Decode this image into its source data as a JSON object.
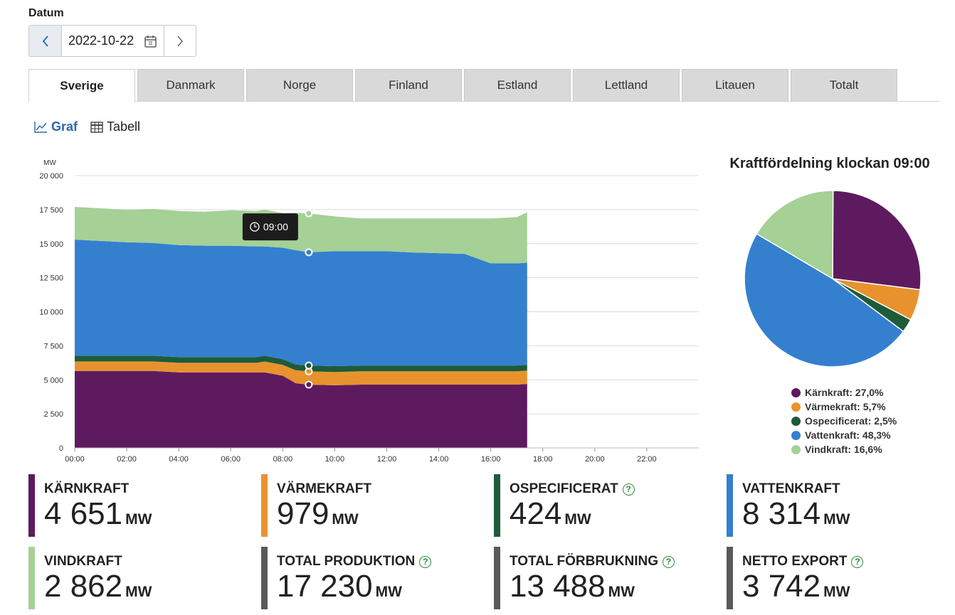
{
  "datum": {
    "label": "Datum",
    "value": "2022-10-22"
  },
  "tabs": [
    {
      "label": "Sverige",
      "active": true
    },
    {
      "label": "Danmark",
      "active": false
    },
    {
      "label": "Norge",
      "active": false
    },
    {
      "label": "Finland",
      "active": false
    },
    {
      "label": "Estland",
      "active": false
    },
    {
      "label": "Lettland",
      "active": false
    },
    {
      "label": "Litauen",
      "active": false
    },
    {
      "label": "Totalt",
      "active": false
    }
  ],
  "view_toggle": {
    "graph": "Graf",
    "table": "Tabell"
  },
  "tooltip": {
    "time": "09:00"
  },
  "chart_data": {
    "type": "area",
    "stacked": true,
    "ylabel": "MW",
    "ylim": [
      0,
      20000
    ],
    "yticks": [
      0,
      2500,
      5000,
      7500,
      10000,
      12500,
      15000,
      17500,
      20000
    ],
    "ytick_labels": [
      "0",
      "2 500",
      "5 000",
      "7 500",
      "10 000",
      "12 500",
      "15 000",
      "17 500",
      "20 000"
    ],
    "xlim": [
      0,
      24
    ],
    "xticks": [
      0,
      2,
      4,
      6,
      8,
      10,
      12,
      14,
      16,
      18,
      20,
      22
    ],
    "xtick_labels": [
      "00:00",
      "02:00",
      "04:00",
      "06:00",
      "08:00",
      "10:00",
      "12:00",
      "14:00",
      "16:00",
      "18:00",
      "20:00",
      "22:00"
    ],
    "x": [
      0,
      1,
      2,
      3,
      4,
      5,
      6,
      7,
      7.3,
      8,
      8.5,
      9,
      10,
      11,
      12,
      13,
      14,
      15,
      16,
      17,
      17.4
    ],
    "series": [
      {
        "name": "Kärnkraft",
        "color": "#5e1a5f",
        "values": [
          5650,
          5650,
          5650,
          5650,
          5550,
          5550,
          5550,
          5550,
          5550,
          5300,
          4750,
          4650,
          4600,
          4650,
          4650,
          4650,
          4650,
          4650,
          4650,
          4650,
          4700
        ]
      },
      {
        "name": "Värmekraft",
        "color": "#e8922e",
        "values": [
          700,
          700,
          700,
          700,
          700,
          700,
          700,
          700,
          800,
          800,
          950,
          979,
          979,
          979,
          979,
          979,
          979,
          979,
          979,
          979,
          979
        ]
      },
      {
        "name": "Ospecificerat",
        "color": "#1e5b3a",
        "values": [
          420,
          420,
          420,
          420,
          420,
          420,
          420,
          420,
          420,
          424,
          424,
          424,
          424,
          424,
          424,
          424,
          424,
          424,
          424,
          424,
          424
        ]
      },
      {
        "name": "Vattenkraft",
        "color": "#3480cf",
        "values": [
          8530,
          8430,
          8330,
          8280,
          8230,
          8180,
          8180,
          8130,
          8030,
          8180,
          8400,
          8314,
          8450,
          8400,
          8400,
          8300,
          8250,
          8200,
          7500,
          7500,
          7500
        ]
      },
      {
        "name": "Vindkraft",
        "color": "#a5d096",
        "values": [
          2400,
          2400,
          2400,
          2500,
          2500,
          2500,
          2600,
          2600,
          2700,
          2550,
          2750,
          2862,
          2550,
          2400,
          2400,
          2500,
          2550,
          2600,
          3300,
          3400,
          3700
        ]
      }
    ],
    "highlight_x": 9,
    "pie": {
      "title": "Kraftfördelning klockan 09:00",
      "slices": [
        {
          "name": "Kärnkraft",
          "percent": 27.0,
          "label": "Kärnkraft: 27,0%",
          "color": "#5e1a5f"
        },
        {
          "name": "Värmekraft",
          "percent": 5.7,
          "label": "Värmekraft: 5,7%",
          "color": "#e8922e"
        },
        {
          "name": "Ospecificerat",
          "percent": 2.5,
          "label": "Ospecificerat: 2,5%",
          "color": "#1e5b3a"
        },
        {
          "name": "Vattenkraft",
          "percent": 48.3,
          "label": "Vattenkraft: 48,3%",
          "color": "#3480cf"
        },
        {
          "name": "Vindkraft",
          "percent": 16.6,
          "label": "Vindkraft: 16,6%",
          "color": "#a5d096"
        }
      ]
    }
  },
  "cards": [
    {
      "label": "KÄRNKRAFT",
      "value": "4 651",
      "unit": "MW",
      "color": "#5e1a5f",
      "help": false
    },
    {
      "label": "VÄRMEKRAFT",
      "value": "979",
      "unit": "MW",
      "color": "#e8922e",
      "help": false
    },
    {
      "label": "OSPECIFICERAT",
      "value": "424",
      "unit": "MW",
      "color": "#1e5b3a",
      "help": true
    },
    {
      "label": "VATTENKRAFT",
      "value": "8 314",
      "unit": "MW",
      "color": "#3480cf",
      "help": false
    },
    {
      "label": "VINDKRAFT",
      "value": "2 862",
      "unit": "MW",
      "color": "#a5d096",
      "help": false
    },
    {
      "label": "TOTAL PRODUKTION",
      "value": "17 230",
      "unit": "MW",
      "color": "#5a5a5a",
      "help": true
    },
    {
      "label": "TOTAL FÖRBRUKNING",
      "value": "13 488",
      "unit": "MW",
      "color": "#5a5a5a",
      "help": true
    },
    {
      "label": "NETTO EXPORT",
      "value": "3 742",
      "unit": "MW",
      "color": "#5a5a5a",
      "help": true
    }
  ]
}
